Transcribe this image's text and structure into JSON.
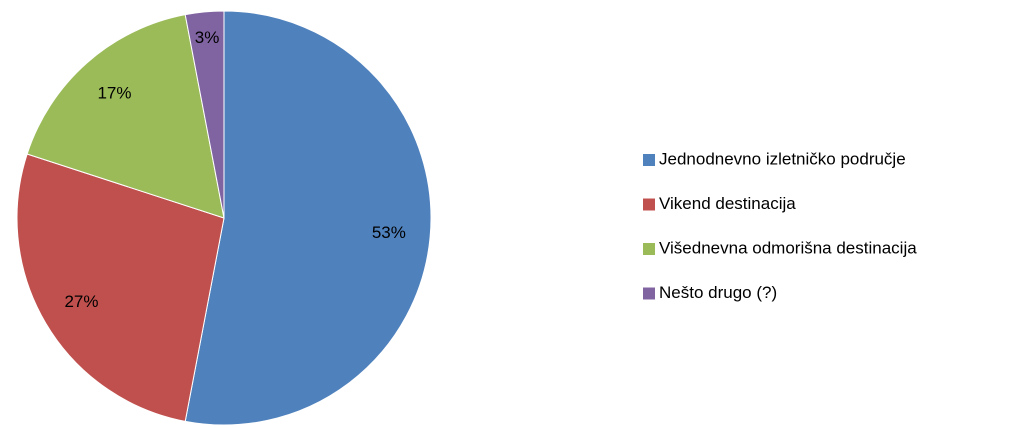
{
  "chart_data": {
    "type": "pie",
    "categories": [
      "Jednodnevno izletničko područje",
      "Vikend destinacija",
      "Višednevna odmorišna destinacija",
      "Nešto drugo (?)"
    ],
    "values": [
      53,
      27,
      17,
      3
    ],
    "value_labels": [
      "53%",
      "27%",
      "17%",
      "3%"
    ],
    "colors": [
      "#4f81bd",
      "#c0504d",
      "#9bbb59",
      "#8064a2"
    ],
    "legend": "right"
  }
}
